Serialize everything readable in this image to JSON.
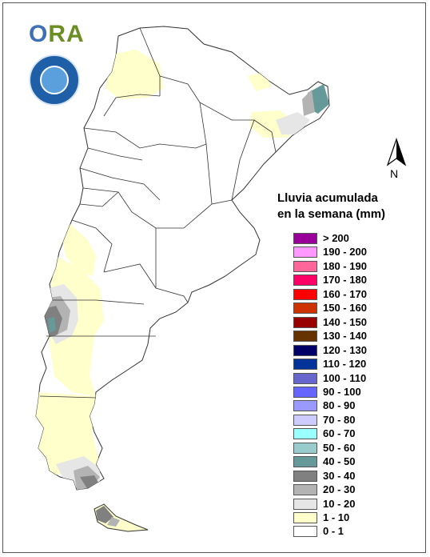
{
  "logo": {
    "text_o": "O",
    "text_rest": "RA"
  },
  "north_arrow": {
    "label": "N"
  },
  "legend": {
    "title_line1": "Lluvia acumulada",
    "title_line2": "en la semana (mm)",
    "items": [
      {
        "label": "> 200",
        "color": "#990099"
      },
      {
        "label": "190 - 200",
        "color": "#ff99ff"
      },
      {
        "label": "180 - 190",
        "color": "#ff6699"
      },
      {
        "label": "170 - 180",
        "color": "#ff0066"
      },
      {
        "label": "160 - 170",
        "color": "#ff0000"
      },
      {
        "label": "150 - 160",
        "color": "#cc3300"
      },
      {
        "label": "140 - 150",
        "color": "#990000"
      },
      {
        "label": "130 - 140",
        "color": "#663300"
      },
      {
        "label": "120 - 130",
        "color": "#000066"
      },
      {
        "label": "110 - 120",
        "color": "#003399"
      },
      {
        "label": "100 - 110",
        "color": "#6666cc"
      },
      {
        "label": "90 - 100",
        "color": "#6666ff"
      },
      {
        "label": "80 - 90",
        "color": "#9999ff"
      },
      {
        "label": "70 - 80",
        "color": "#ccccff"
      },
      {
        "label": "60 - 70",
        "color": "#99ffff"
      },
      {
        "label": "50 - 60",
        "color": "#99cccc"
      },
      {
        "label": "40 - 50",
        "color": "#669999"
      },
      {
        "label": "30 - 40",
        "color": "#808080"
      },
      {
        "label": "20 - 30",
        "color": "#b3b3b3"
      },
      {
        "label": "10 - 20",
        "color": "#e6e6e6"
      },
      {
        "label": "1 - 10",
        "color": "#ffffcc"
      },
      {
        "label": "0 - 1",
        "color": "#ffffff"
      }
    ]
  }
}
